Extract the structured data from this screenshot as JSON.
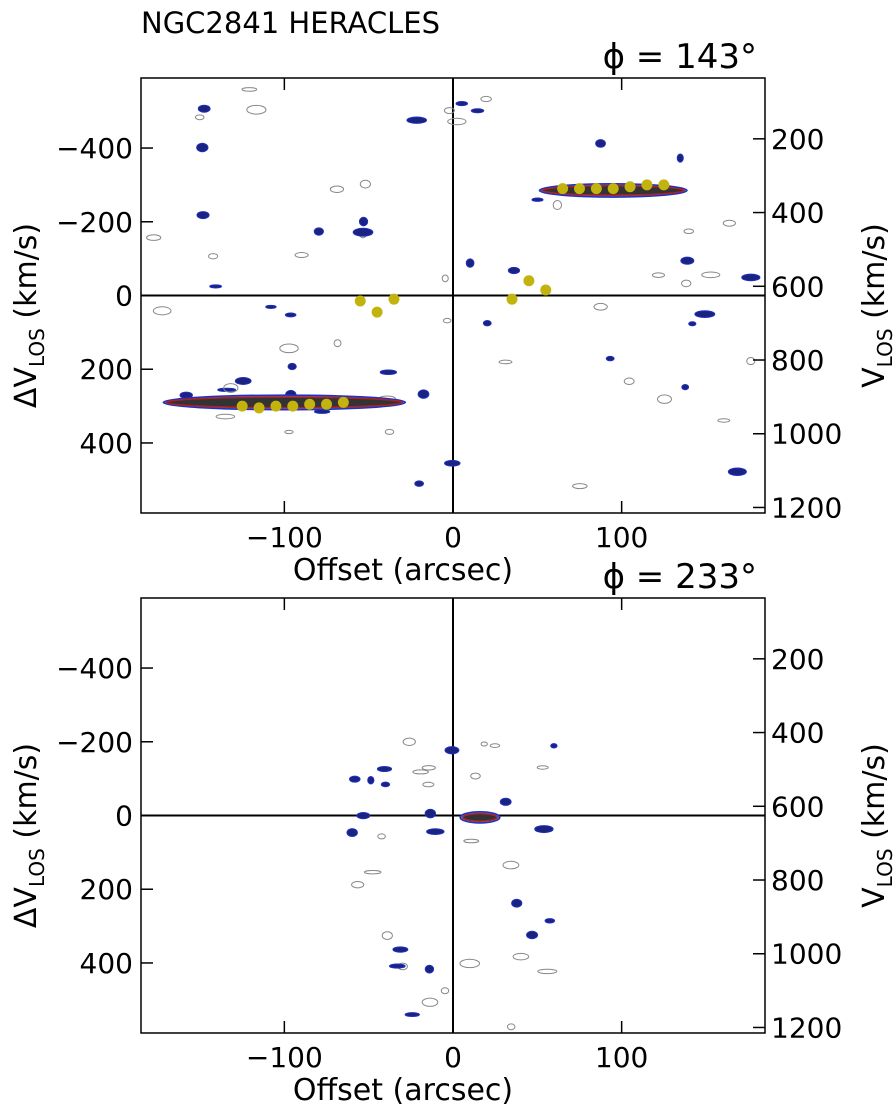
{
  "title": "NGC2841 HERACLES",
  "chart_data": [
    {
      "type": "scatter",
      "phi_label": "ϕ = 143°",
      "xlabel": "Offset (arcsec)",
      "ylabel_left": "ΔV",
      "ylabel_left_sub": "LOS",
      "ylabel_left_unit": " (km/s)",
      "ylabel_right": "V",
      "ylabel_right_sub": "LOS",
      "ylabel_right_unit": " (km/s)",
      "xlim": [
        -185,
        185
      ],
      "ylim": [
        -590,
        590
      ],
      "y_inverted": true,
      "right_ylim": [
        35,
        1215
      ],
      "x_ticks": [
        -100,
        0,
        100
      ],
      "x_tick_labels": [
        "−100",
        "0",
        "100"
      ],
      "y_ticks": [
        -400,
        -200,
        0,
        200,
        400
      ],
      "y_tick_labels": [
        "−400",
        "−200",
        "0",
        "200",
        "400"
      ],
      "right_ticks": [
        200,
        400,
        600,
        800,
        1000,
        1200
      ],
      "right_tick_labels": [
        "200",
        "400",
        "600",
        "800",
        "1000",
        "1200"
      ],
      "zero_lines": true,
      "points_color": "#c2b30f",
      "points": [
        {
          "x": 65,
          "y": -290
        },
        {
          "x": 75,
          "y": -290
        },
        {
          "x": 85,
          "y": -290
        },
        {
          "x": 95,
          "y": -290
        },
        {
          "x": 105,
          "y": -295
        },
        {
          "x": 115,
          "y": -300
        },
        {
          "x": 125,
          "y": -300
        },
        {
          "x": 35,
          "y": 10
        },
        {
          "x": 45,
          "y": -40
        },
        {
          "x": 55,
          "y": -15
        },
        {
          "x": -55,
          "y": 15
        },
        {
          "x": -45,
          "y": 45
        },
        {
          "x": -35,
          "y": 10
        },
        {
          "x": -125,
          "y": 300
        },
        {
          "x": -115,
          "y": 305
        },
        {
          "x": -105,
          "y": 300
        },
        {
          "x": -95,
          "y": 300
        },
        {
          "x": -85,
          "y": 295
        },
        {
          "x": -75,
          "y": 295
        },
        {
          "x": -65,
          "y": 290
        }
      ],
      "main_contours": [
        {
          "cx": 95,
          "cy": -285,
          "w": 42,
          "h": 28
        },
        {
          "cx": -100,
          "cy": 290,
          "w": 70,
          "h": 32
        }
      ]
    },
    {
      "type": "scatter",
      "phi_label": "ϕ = 233°",
      "xlabel": "Offset (arcsec)",
      "ylabel_left": "ΔV",
      "ylabel_left_sub": "LOS",
      "ylabel_left_unit": " (km/s)",
      "ylabel_right": "V",
      "ylabel_right_sub": "LOS",
      "ylabel_right_unit": " (km/s)",
      "xlim": [
        -185,
        185
      ],
      "ylim": [
        -590,
        590
      ],
      "y_inverted": true,
      "right_ylim": [
        35,
        1215
      ],
      "x_ticks": [
        -100,
        0,
        100
      ],
      "x_tick_labels": [
        "−100",
        "0",
        "100"
      ],
      "y_ticks": [
        -400,
        -200,
        0,
        200,
        400
      ],
      "y_tick_labels": [
        "−400",
        "−200",
        "0",
        "200",
        "400"
      ],
      "right_ticks": [
        200,
        400,
        600,
        800,
        1000,
        1200
      ],
      "right_tick_labels": [
        "200",
        "400",
        "600",
        "800",
        "1000",
        "1200"
      ],
      "zero_lines": true,
      "points_color": "#c2b30f",
      "points": [],
      "main_contours": [
        {
          "cx": 16,
          "cy": 5,
          "w": 10,
          "h": 22
        }
      ]
    }
  ]
}
